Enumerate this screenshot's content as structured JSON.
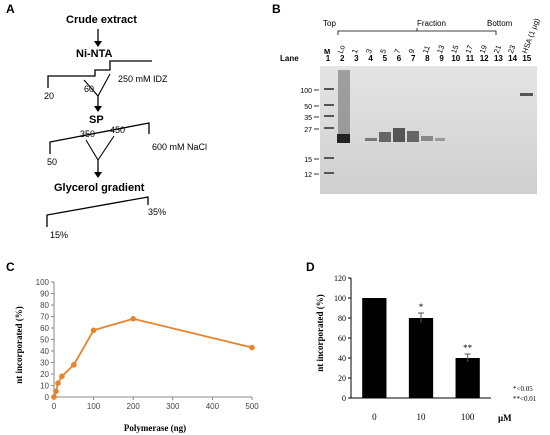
{
  "panel_labels": {
    "a": "A",
    "b": "B",
    "c": "C",
    "d": "D"
  },
  "panel_a": {
    "step1": "Crude extract",
    "step2": "Ni-NTA",
    "ni_start": "20",
    "ni_mid": "60",
    "ni_end": "250 mM IDZ",
    "step3": "SP",
    "sp_start": "50",
    "sp_mid1": "350",
    "sp_mid2": "450",
    "sp_end": "600 mM NaCl",
    "step4": "Glycerol gradient",
    "gly_start": "15%",
    "gly_end": "35%"
  },
  "panel_b": {
    "top_label": "Top",
    "fraction_label": "Fraction",
    "bottom_label": "Bottom",
    "lane_label": "Lane",
    "marker_label": "M",
    "load_label": "Lo",
    "fractions": [
      "1",
      "3",
      "5",
      "7",
      "9",
      "11",
      "13",
      "15",
      "17",
      "19",
      "21",
      "23"
    ],
    "hsa_label": "HSA (1 µg)",
    "lanes": [
      "1",
      "2",
      "3",
      "4",
      "5",
      "6",
      "7",
      "8",
      "9",
      "10",
      "11",
      "12",
      "13",
      "14",
      "15"
    ],
    "mw_markers": [
      "100",
      "50",
      "35",
      "27",
      "15",
      "12"
    ]
  },
  "panel_c": {
    "chart_data": {
      "type": "line",
      "x": [
        0,
        5,
        10,
        20,
        50,
        100,
        200,
        500
      ],
      "series": [
        {
          "values": [
            0,
            5,
            12,
            18,
            28,
            58,
            68,
            43
          ]
        }
      ],
      "xlabel": "Polymerase (ng)",
      "ylabel": "nt incorporated (%)",
      "xlim": [
        0,
        500
      ],
      "ylim": [
        0,
        100
      ],
      "xticks": [
        "0",
        "100",
        "200",
        "300",
        "400",
        "500"
      ],
      "yticks": [
        "0",
        "10",
        "20",
        "30",
        "40",
        "50",
        "60",
        "70",
        "80",
        "90",
        "100"
      ],
      "color": "#E8832A",
      "grid": false
    }
  },
  "panel_d": {
    "chart_data": {
      "type": "bar",
      "categories": [
        "0",
        "10",
        "100"
      ],
      "values": [
        100,
        80,
        40
      ],
      "errors": [
        0,
        5,
        4
      ],
      "significance": [
        "",
        "*",
        "**"
      ],
      "xunit": "µM",
      "ylabel": "nt incorporated (%)",
      "ylim": [
        0,
        120
      ],
      "yticks": [
        "0",
        "20",
        "40",
        "60",
        "80",
        "100",
        "120"
      ],
      "legend_notes": [
        "*<0.05",
        "**<0.01"
      ],
      "color": "#000000",
      "grid": false
    }
  }
}
